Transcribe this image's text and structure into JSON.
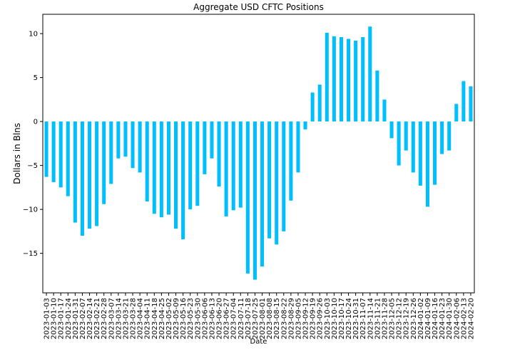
{
  "chart_data": {
    "type": "bar",
    "title": "Aggregate USD CFTC Positions",
    "xlabel": "Date",
    "ylabel": "Dollars in Blns",
    "ylim": [
      -19.5,
      12.2
    ],
    "yticks": [
      -15,
      -10,
      -5,
      0,
      5,
      10
    ],
    "grid": false,
    "bar_color": "#00bfff",
    "categories": [
      "2023-01-03",
      "2023-01-10",
      "2023-01-17",
      "2023-01-24",
      "2023-01-31",
      "2023-02-07",
      "2023-02-14",
      "2023-02-21",
      "2023-02-28",
      "2023-03-07",
      "2023-03-14",
      "2023-03-21",
      "2023-03-28",
      "2023-04-04",
      "2023-04-11",
      "2023-04-18",
      "2023-04-25",
      "2023-05-02",
      "2023-05-09",
      "2023-05-16",
      "2023-05-23",
      "2023-05-30",
      "2023-06-06",
      "2023-06-13",
      "2023-06-20",
      "2023-06-27",
      "2023-07-04",
      "2023-07-11",
      "2023-07-18",
      "2023-07-25",
      "2023-08-01",
      "2023-08-08",
      "2023-08-15",
      "2023-08-22",
      "2023-08-29",
      "2023-09-05",
      "2023-09-12",
      "2023-09-19",
      "2023-09-26",
      "2023-10-03",
      "2023-10-10",
      "2023-10-17",
      "2023-10-24",
      "2023-10-31",
      "2023-11-07",
      "2023-11-14",
      "2023-11-21",
      "2023-11-28",
      "2023-12-05",
      "2023-12-12",
      "2023-12-19",
      "2023-12-26",
      "2024-01-02",
      "2024-01-09",
      "2024-01-16",
      "2024-01-23",
      "2024-01-30",
      "2024-02-06",
      "2024-02-13",
      "2024-02-20"
    ],
    "values": [
      -6.3,
      -6.9,
      -7.5,
      -8.5,
      -11.5,
      -13.0,
      -12.2,
      -11.9,
      -9.4,
      -7.1,
      -4.2,
      -4.0,
      -5.3,
      -5.8,
      -9.1,
      -10.5,
      -10.9,
      -10.6,
      -12.2,
      -13.4,
      -10.0,
      -9.6,
      -6.0,
      -4.2,
      -7.4,
      -10.8,
      -10.1,
      -9.8,
      -17.3,
      -18.0,
      -16.5,
      -13.3,
      -14.0,
      -12.5,
      -9.0,
      -5.8,
      -0.9,
      3.3,
      4.2,
      10.1,
      9.7,
      9.6,
      9.4,
      9.2,
      9.6,
      10.8,
      5.8,
      2.5,
      -1.9,
      -5.0,
      -3.3,
      -5.8,
      -7.3,
      -9.7,
      -7.2,
      -3.7,
      -3.3,
      2.0,
      4.6,
      4.0
    ]
  }
}
